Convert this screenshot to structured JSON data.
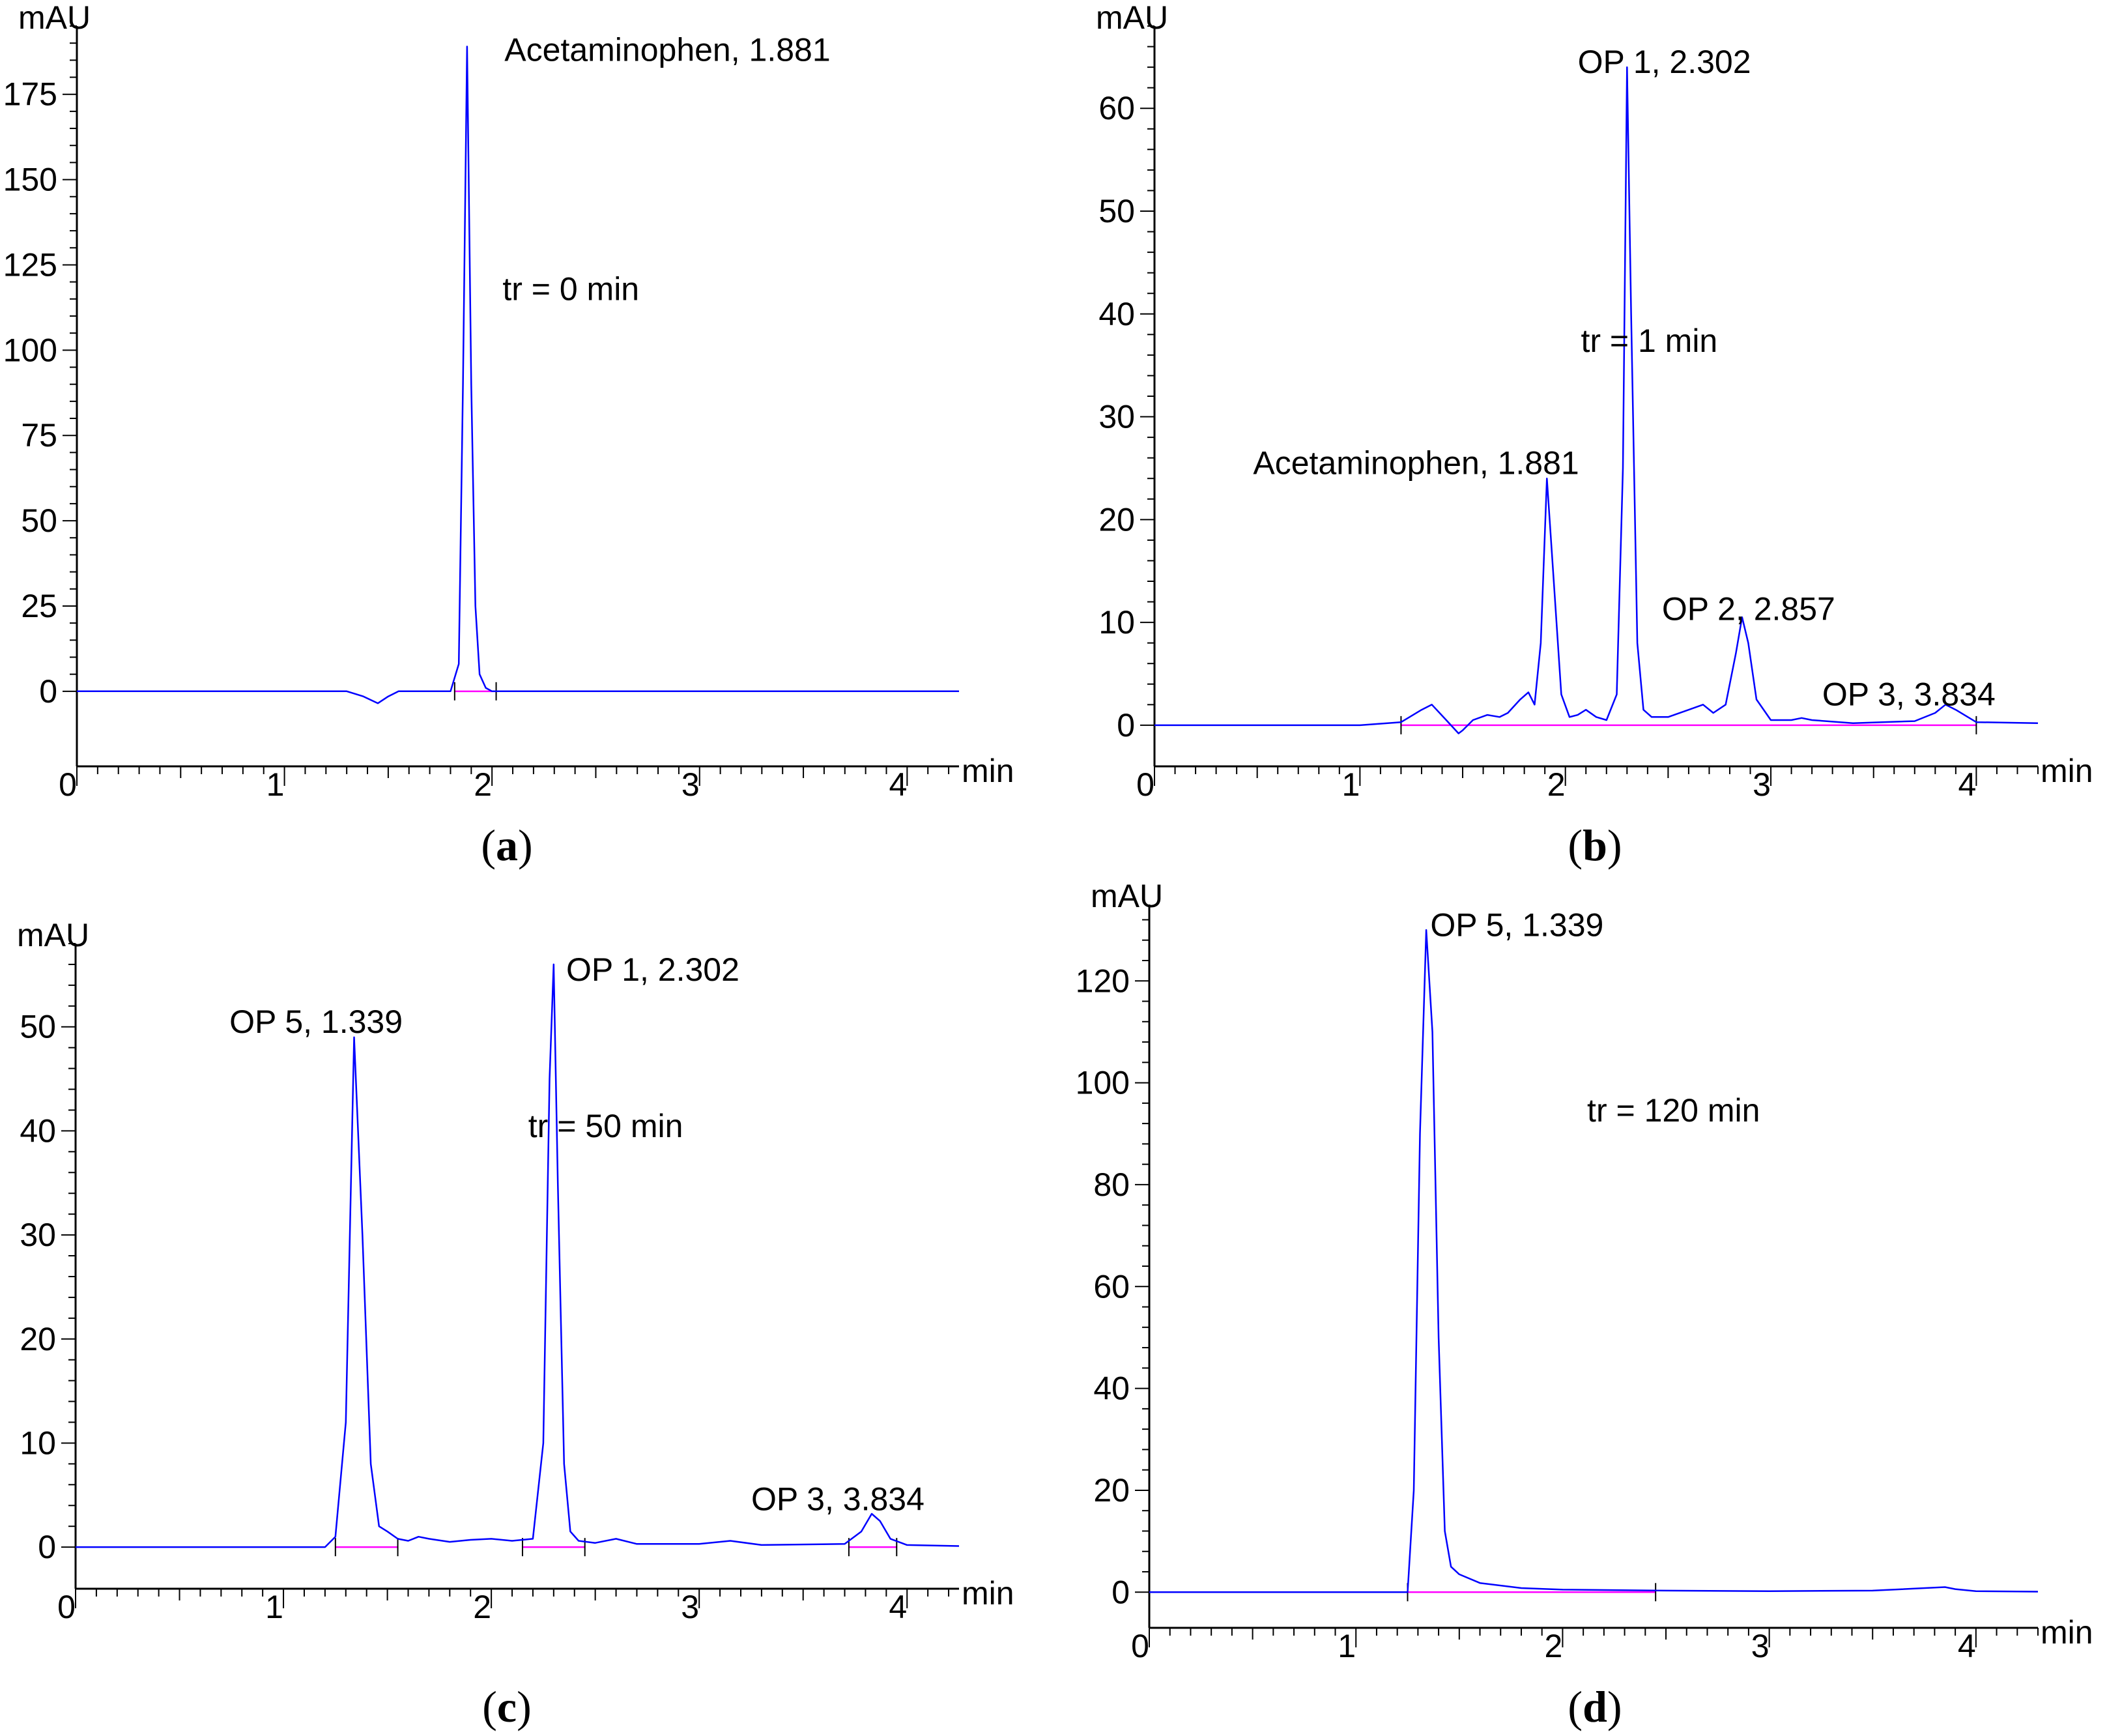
{
  "chart_data": [
    {
      "type": "line",
      "caption_letter": "a",
      "y_unit": "mAU",
      "x_unit": "min",
      "xlim": [
        0,
        4.25
      ],
      "ylim": [
        -22,
        195
      ],
      "x_ticks": [
        0,
        1,
        2,
        3,
        4
      ],
      "y_ticks": [
        0,
        25,
        50,
        75,
        100,
        125,
        150,
        175
      ],
      "note": "tr = 0 min",
      "trace_color": "#0000ff",
      "baseline_color": "#ff00ff",
      "series": [
        {
          "x": [
            0,
            1.3,
            1.38,
            1.45,
            1.5,
            1.55,
            1.8,
            1.84,
            1.86,
            1.88,
            1.9,
            1.92,
            1.94,
            1.97,
            2.0,
            2.3,
            4.25
          ],
          "y": [
            0,
            0,
            -1.5,
            -3.5,
            -1.5,
            0,
            0,
            8,
            90,
            189,
            90,
            25,
            5,
            1,
            0,
            0,
            0
          ]
        }
      ],
      "baselines": [
        {
          "x": [
            1.82,
            2.02
          ]
        }
      ],
      "peak_labels": [
        {
          "text": "Acetaminophen, 1.881",
          "x": 2.06,
          "y": 188
        }
      ]
    },
    {
      "type": "line",
      "caption_letter": "b",
      "y_unit": "mAU",
      "x_unit": "min",
      "xlim": [
        0,
        4.3
      ],
      "ylim": [
        -4,
        68
      ],
      "x_ticks": [
        0,
        1,
        2,
        3,
        4
      ],
      "y_ticks": [
        0,
        10,
        20,
        30,
        40,
        50,
        60
      ],
      "note": "tr = 1 min",
      "trace_color": "#0000ff",
      "baseline_color": "#ff00ff",
      "series": [
        {
          "x": [
            0,
            1.0,
            1.2,
            1.3,
            1.35,
            1.42,
            1.48,
            1.5,
            1.55,
            1.62,
            1.68,
            1.72,
            1.78,
            1.82,
            1.85,
            1.88,
            1.91,
            1.94,
            1.98,
            2.02,
            2.06,
            2.1,
            2.15,
            2.2,
            2.25,
            2.28,
            2.3,
            2.32,
            2.35,
            2.38,
            2.42,
            2.5,
            2.6,
            2.67,
            2.72,
            2.78,
            2.83,
            2.86,
            2.89,
            2.93,
            3.0,
            3.1,
            3.15,
            3.2,
            3.4,
            3.7,
            3.8,
            3.85,
            3.9,
            4.0,
            4.3
          ],
          "y": [
            0,
            0,
            0.3,
            1.5,
            2.0,
            0.5,
            -0.8,
            -0.5,
            0.5,
            1.0,
            0.8,
            1.2,
            2.5,
            3.2,
            2.0,
            8,
            24,
            15,
            3,
            0.8,
            1.0,
            1.5,
            0.8,
            0.5,
            3,
            25,
            64,
            40,
            8,
            1.5,
            0.8,
            0.8,
            1.5,
            2.0,
            1.2,
            2.0,
            7,
            10.5,
            8,
            2.5,
            0.5,
            0.5,
            0.7,
            0.5,
            0.2,
            0.4,
            1.2,
            2.0,
            1.5,
            0.3,
            0.2
          ]
        }
      ],
      "baselines": [
        {
          "x": [
            1.2,
            4.0
          ]
        }
      ],
      "peak_labels": [
        {
          "text": "OP 1, 2.302",
          "x": 2.06,
          "y": 64.5
        },
        {
          "text": "Acetaminophen, 1.881",
          "x": 0.48,
          "y": 25.5
        },
        {
          "text": "OP 2, 2.857",
          "x": 2.47,
          "y": 11.3
        },
        {
          "text": "OP 3, 3.834",
          "x": 3.25,
          "y": 3.0
        }
      ]
    },
    {
      "type": "line",
      "caption_letter": "c",
      "y_unit": "mAU",
      "x_unit": "min",
      "xlim": [
        0,
        4.25
      ],
      "ylim": [
        -4,
        58
      ],
      "x_ticks": [
        0,
        1,
        2,
        3,
        4
      ],
      "y_ticks": [
        0,
        10,
        20,
        30,
        40,
        50
      ],
      "note": "tr = 50 min",
      "trace_color": "#0000ff",
      "baseline_color": "#ff00ff",
      "series": [
        {
          "x": [
            0,
            1.2,
            1.25,
            1.3,
            1.34,
            1.38,
            1.42,
            1.46,
            1.5,
            1.55,
            1.6,
            1.65,
            1.7,
            1.8,
            1.9,
            2.0,
            2.1,
            2.2,
            2.25,
            2.28,
            2.3,
            2.32,
            2.35,
            2.38,
            2.42,
            2.5,
            2.6,
            2.7,
            3.0,
            3.15,
            3.3,
            3.7,
            3.78,
            3.83,
            3.87,
            3.92,
            4.0,
            4.25
          ],
          "y": [
            0,
            0,
            1,
            12,
            49,
            30,
            8,
            2,
            1.5,
            0.8,
            0.6,
            1.0,
            0.8,
            0.5,
            0.7,
            0.8,
            0.6,
            0.8,
            10,
            45,
            56,
            35,
            8,
            1.5,
            0.6,
            0.4,
            0.8,
            0.3,
            0.3,
            0.6,
            0.2,
            0.3,
            1.5,
            3.2,
            2.5,
            0.8,
            0.2,
            0.1
          ]
        }
      ],
      "baselines": [
        {
          "x": [
            1.25,
            1.55
          ]
        },
        {
          "x": [
            2.15,
            2.45
          ]
        },
        {
          "x": [
            3.72,
            3.95
          ]
        }
      ],
      "peak_labels": [
        {
          "text": "OP 5, 1.339",
          "x": 0.74,
          "y": 50.5
        },
        {
          "text": "OP 1, 2.302",
          "x": 2.36,
          "y": 55.5
        },
        {
          "text": "OP 3, 3.834",
          "x": 3.25,
          "y": 4.6
        }
      ]
    },
    {
      "type": "line",
      "caption_letter": "d",
      "y_unit": "mAU",
      "x_unit": "min",
      "xlim": [
        0,
        4.3
      ],
      "ylim": [
        -7,
        135
      ],
      "x_ticks": [
        0,
        1,
        2,
        3,
        4
      ],
      "y_ticks": [
        0,
        20,
        40,
        60,
        80,
        100,
        120
      ],
      "note": "tr = 120 min",
      "trace_color": "#0000ff",
      "baseline_color": "#ff00ff",
      "series": [
        {
          "x": [
            0,
            1.25,
            1.28,
            1.31,
            1.34,
            1.37,
            1.4,
            1.43,
            1.46,
            1.5,
            1.6,
            1.8,
            2.0,
            2.5,
            3.0,
            3.5,
            3.85,
            3.9,
            4.0,
            4.3
          ],
          "y": [
            0,
            0,
            20,
            90,
            130,
            110,
            50,
            12,
            5,
            3.5,
            1.8,
            0.8,
            0.5,
            0.3,
            0.2,
            0.3,
            1.0,
            0.6,
            0.2,
            0.1
          ]
        }
      ],
      "baselines": [
        {
          "x": [
            1.25,
            2.45
          ]
        }
      ],
      "peak_labels": [
        {
          "text": "OP 5, 1.339",
          "x": 1.36,
          "y": 131
        }
      ]
    }
  ]
}
